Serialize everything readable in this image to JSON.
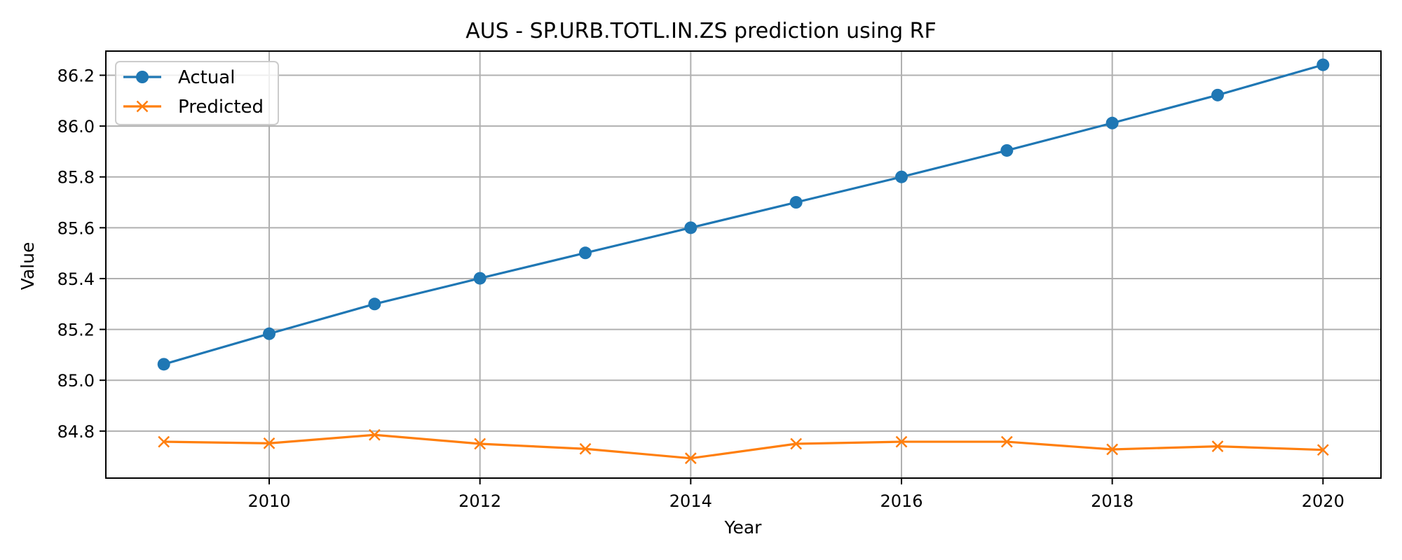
{
  "chart_data": {
    "type": "line",
    "title": "AUS - SP.URB.TOTL.IN.ZS prediction using RF",
    "xlabel": "Year",
    "ylabel": "Value",
    "x": [
      2009,
      2010,
      2011,
      2012,
      2013,
      2014,
      2015,
      2016,
      2017,
      2018,
      2019,
      2020
    ],
    "xlim": [
      2008.45,
      2020.55
    ],
    "ylim": [
      84.615,
      86.295
    ],
    "xticks": [
      2010,
      2012,
      2014,
      2016,
      2018,
      2020
    ],
    "yticks": [
      84.8,
      85.0,
      85.2,
      85.4,
      85.6,
      85.8,
      86.0,
      86.2
    ],
    "ytick_labels": [
      "84.8",
      "85.0",
      "85.2",
      "85.4",
      "85.6",
      "85.8",
      "86.0",
      "86.2"
    ],
    "grid": true,
    "legend_position": "top-left",
    "series": [
      {
        "name": "Actual",
        "marker": "circle",
        "color": "#1f77b4",
        "values": [
          85.063,
          85.183,
          85.3,
          85.401,
          85.501,
          85.6,
          85.7,
          85.8,
          85.904,
          86.012,
          86.122,
          86.241
        ]
      },
      {
        "name": "Predicted",
        "marker": "x",
        "color": "#ff7f0e",
        "values": [
          84.758,
          84.752,
          84.785,
          84.75,
          84.73,
          84.693,
          84.75,
          84.758,
          84.758,
          84.728,
          84.74,
          84.726
        ]
      }
    ]
  }
}
